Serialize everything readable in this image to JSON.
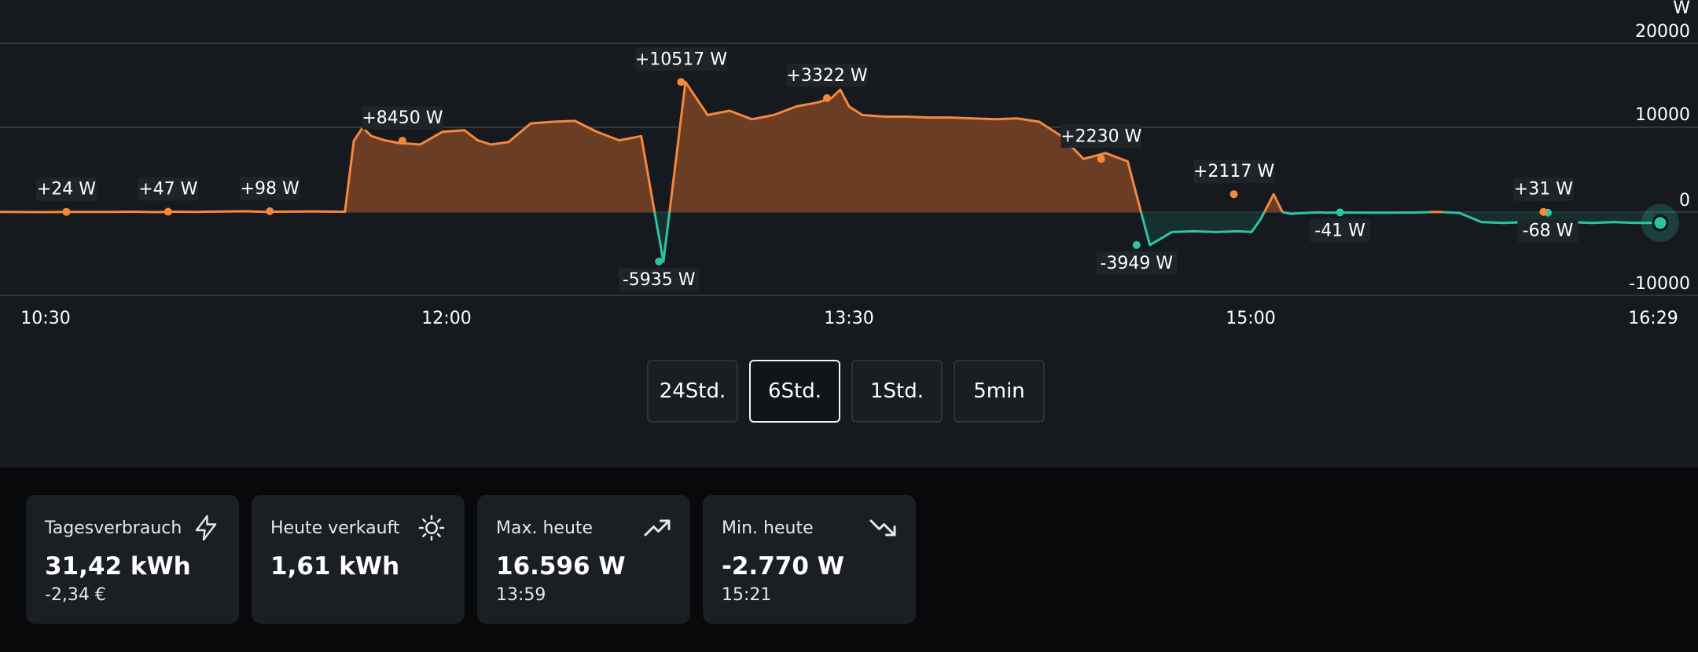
{
  "chart_data": {
    "type": "area",
    "ylabel": "W",
    "y_ticks": [
      "20000",
      "10000",
      "0",
      "-10000"
    ],
    "x_ticks": [
      "10:30",
      "12:00",
      "13:30",
      "15:00",
      "16:29"
    ],
    "ylim": [
      -10000,
      20000
    ],
    "x_range_minutes": [
      615,
      989
    ],
    "colors": {
      "import": "#f5883a",
      "export": "#2ec4a3",
      "import_fill": "#6b3d24",
      "export_fill": "#173b36"
    },
    "series": [
      {
        "x_minutes": [
          615,
          620,
          625,
          630,
          635,
          640,
          645,
          650,
          655,
          660,
          665,
          670,
          675,
          680,
          685,
          690,
          693,
          695,
          697,
          699,
          702,
          705,
          710,
          715,
          720,
          723,
          726,
          730,
          735,
          740,
          745,
          750,
          755,
          760,
          765,
          770,
          775,
          780,
          785,
          790,
          795,
          800,
          803,
          805,
          807,
          810,
          815,
          820,
          825,
          830,
          835,
          840,
          845,
          850,
          855,
          860,
          865,
          870,
          875,
          880,
          885,
          890,
          895,
          898,
          900,
          903,
          905,
          907,
          910,
          913,
          915,
          920,
          925,
          930,
          935,
          940,
          945,
          950,
          955,
          960,
          965,
          970,
          975,
          980,
          985,
          989
        ],
        "y": [
          24,
          10,
          0,
          20,
          24,
          30,
          47,
          0,
          50,
          30,
          70,
          98,
          40,
          60,
          80,
          60,
          40,
          8450,
          10000,
          9000,
          8500,
          8200,
          8000,
          9500,
          9700,
          8500,
          8000,
          8300,
          10500,
          10700,
          10800,
          9500,
          8500,
          9000,
          -5935,
          15400,
          11500,
          12000,
          11000,
          11500,
          12500,
          13000,
          13500,
          14500,
          12500,
          11500,
          11300,
          11300,
          11200,
          11200,
          11100,
          11000,
          11100,
          10700,
          9000,
          6300,
          7000,
          6000,
          -3949,
          -2400,
          -2300,
          -2400,
          -2300,
          -2400,
          -900,
          2117,
          0,
          -200,
          -100,
          -41,
          -80,
          -60,
          -70,
          -68,
          -60,
          31,
          -100,
          -1200,
          -1300,
          -1200,
          -1300,
          -1200,
          -1300,
          -1200,
          -1300,
          -1300
        ]
      }
    ],
    "point_labels": [
      {
        "text": "+24 W",
        "x": 630,
        "y": 24
      },
      {
        "text": "+47 W",
        "x": 653,
        "y": 47
      },
      {
        "text": "+98 W",
        "x": 676,
        "y": 98
      },
      {
        "text": "+8450 W",
        "x": 706,
        "y": 8450
      },
      {
        "text": "-5935 W",
        "x": 764,
        "y": -5935
      },
      {
        "text": "+10517 W",
        "x": 769,
        "y": 15400
      },
      {
        "text": "+3322 W",
        "x": 802,
        "y": 13500
      },
      {
        "text": "+2230 W",
        "x": 864,
        "y": 6300
      },
      {
        "text": "-3949 W",
        "x": 872,
        "y": -3949
      },
      {
        "text": "+2117 W",
        "x": 894,
        "y": 2117
      },
      {
        "text": "-41 W",
        "x": 918,
        "y": -41
      },
      {
        "text": "-68 W",
        "x": 965,
        "y": -68
      },
      {
        "text": "+31 W",
        "x": 964,
        "y": 31
      }
    ]
  },
  "ranges": {
    "r24": "24Std.",
    "r6": "6Std.",
    "r1": "1Std.",
    "r5": "5min",
    "active": "6Std."
  },
  "stats": {
    "consumption": {
      "title": "Tagesverbrauch",
      "value": "31,42 kWh",
      "sub": "-2,34 €",
      "icon": "bolt-icon"
    },
    "sold": {
      "title": "Heute verkauft",
      "value": "1,61 kWh",
      "icon": "sun-icon"
    },
    "max": {
      "title": "Max. heute",
      "value": "16.596 W",
      "sub": "13:59",
      "icon": "trending-up-icon"
    },
    "min": {
      "title": "Min. heute",
      "value": "-2.770 W",
      "sub": "15:21",
      "icon": "trending-down-icon"
    }
  }
}
